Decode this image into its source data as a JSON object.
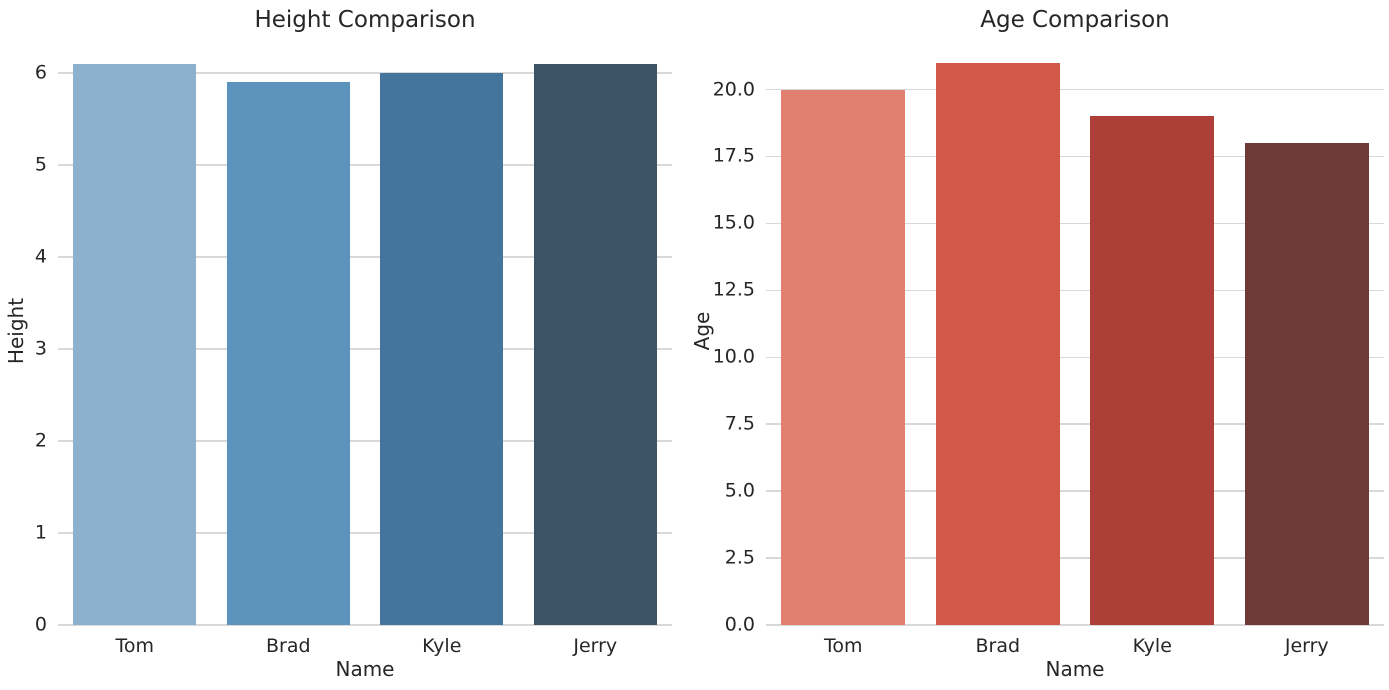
{
  "figure": {
    "background": "#ffffff",
    "text_color": "#262626",
    "grid_color": "#d8d8d8"
  },
  "chart_data": [
    {
      "type": "bar",
      "title": "Height Comparison",
      "xlabel": "Name",
      "ylabel": "Height",
      "categories": [
        "Tom",
        "Brad",
        "Kyle",
        "Jerry"
      ],
      "values": [
        6.1,
        5.9,
        6.0,
        6.1
      ],
      "bar_colors": [
        "#8cb1ce",
        "#5c93bd",
        "#45759c",
        "#3c5265"
      ],
      "ylim": [
        0,
        6.4
      ],
      "yticks": [
        0,
        1,
        2,
        3,
        4,
        5,
        6
      ],
      "ytick_labels": [
        "0",
        "1",
        "2",
        "3",
        "4",
        "5",
        "6"
      ],
      "grid": true,
      "legend": false,
      "bar_width_fraction": 0.8
    },
    {
      "type": "bar",
      "title": "Age Comparison",
      "xlabel": "Name",
      "ylabel": "Age",
      "categories": [
        "Tom",
        "Brad",
        "Kyle",
        "Jerry"
      ],
      "values": [
        20,
        21,
        19,
        18
      ],
      "bar_colors": [
        "#e18070",
        "#d25849",
        "#ad3f38",
        "#6f3b38"
      ],
      "ylim": [
        0,
        22
      ],
      "yticks": [
        0,
        2.5,
        5,
        7.5,
        10,
        12.5,
        15,
        17.5,
        20
      ],
      "ytick_labels": [
        "0.0",
        "2.5",
        "5.0",
        "7.5",
        "10.0",
        "12.5",
        "15.0",
        "17.5",
        "20.0"
      ],
      "grid": true,
      "legend": false,
      "bar_width_fraction": 0.8
    }
  ]
}
